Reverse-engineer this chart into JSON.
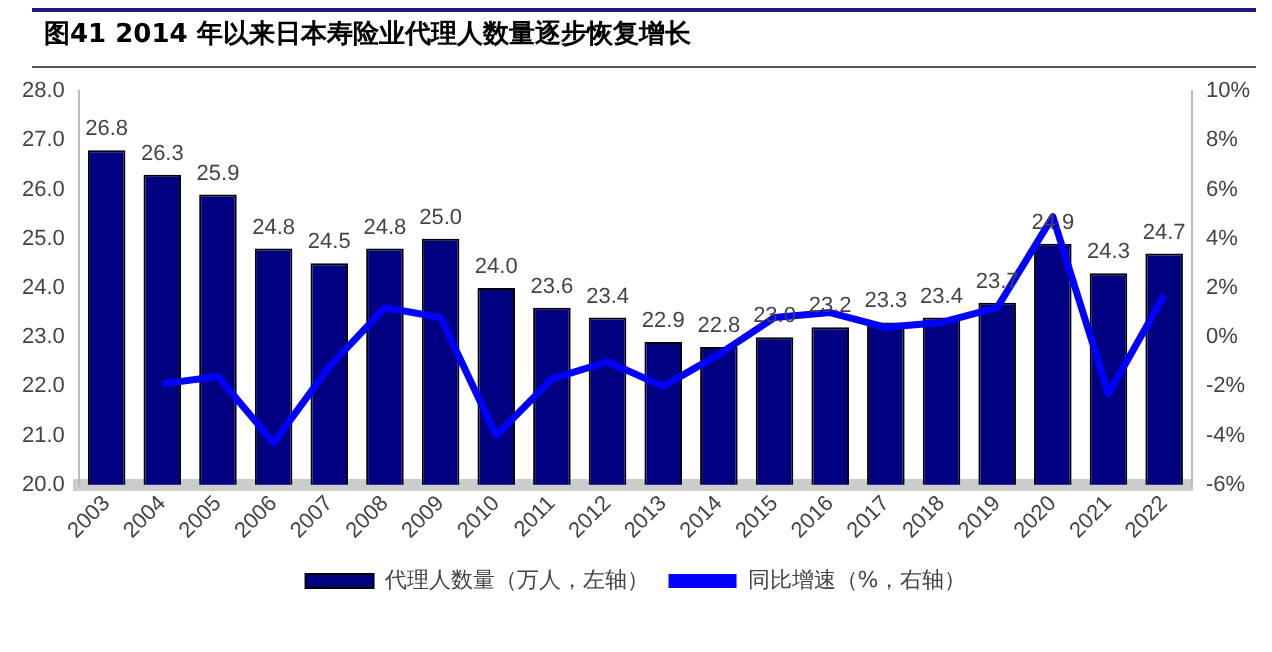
{
  "chart_data": {
    "type": "bar",
    "title": "图41 2014 年以来日本寿险业代理人数量逐步恢复增长",
    "categories": [
      "2003",
      "2004",
      "2005",
      "2006",
      "2007",
      "2008",
      "2009",
      "2010",
      "2011",
      "2012",
      "2013",
      "2014",
      "2015",
      "2016",
      "2017",
      "2018",
      "2019",
      "2020",
      "2021",
      "2022"
    ],
    "series": [
      {
        "name": "代理人数量（万人，左轴）",
        "color": "#000080",
        "values": [
          26.8,
          26.3,
          25.9,
          24.8,
          24.5,
          24.8,
          25.0,
          24.0,
          23.6,
          23.4,
          22.9,
          22.8,
          23.0,
          23.2,
          23.3,
          23.4,
          23.7,
          24.9,
          24.3,
          24.7
        ],
        "value_labels": [
          "26.8",
          "26.3",
          "25.9",
          "24.8",
          "24.5",
          "24.8",
          "25.0",
          "24.0",
          "23.6",
          "23.4",
          "22.9",
          "22.8",
          "23.0",
          "23.2",
          "23.3",
          "23.4",
          "23.7",
          "24.9",
          "24.3",
          "24.7"
        ]
      },
      {
        "name": "同比增速（%，右轴）",
        "type": "line",
        "axis": "y2",
        "color": "#0000ff",
        "values": [
          null,
          -1.9,
          -1.6,
          -4.3,
          -1.2,
          1.2,
          0.8,
          -4.0,
          -1.7,
          -1.0,
          -2.0,
          -0.7,
          0.8,
          1.0,
          0.4,
          0.6,
          1.2,
          4.9,
          -2.3,
          1.7
        ]
      }
    ],
    "ylim": [
      20,
      28
    ],
    "yticks": [
      {
        "value": 20,
        "label": "20.0"
      },
      {
        "value": 21,
        "label": "21.0"
      },
      {
        "value": 22,
        "label": "22.0"
      },
      {
        "value": 23,
        "label": "23.0"
      },
      {
        "value": 24,
        "label": "24.0"
      },
      {
        "value": 25,
        "label": "25.0"
      },
      {
        "value": 26,
        "label": "26.0"
      },
      {
        "value": 27,
        "label": "27.0"
      },
      {
        "value": 28,
        "label": "28.0"
      }
    ],
    "y2lim": [
      -6,
      10
    ],
    "y2ticks": [
      {
        "value": -6,
        "label": "-6%"
      },
      {
        "value": -4,
        "label": "-4%"
      },
      {
        "value": -2,
        "label": "-2%"
      },
      {
        "value": 0,
        "label": "0%"
      },
      {
        "value": 2,
        "label": "2%"
      },
      {
        "value": 4,
        "label": "4%"
      },
      {
        "value": 6,
        "label": "6%"
      },
      {
        "value": 8,
        "label": "8%"
      },
      {
        "value": 10,
        "label": "10%"
      }
    ],
    "grid": false,
    "legend": "bottom",
    "marker": "none",
    "line_style": "solid"
  }
}
